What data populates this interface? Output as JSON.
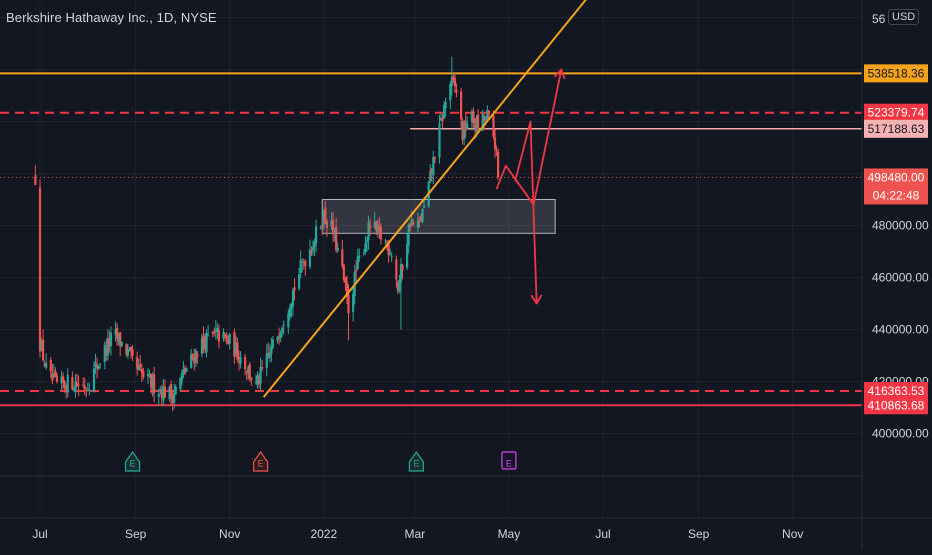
{
  "header": {
    "title": "Berkshire Hathaway Inc., 1D, NYSE",
    "currency": "USD"
  },
  "colors": {
    "background": "#131722",
    "grid": "#1e222d",
    "axis_text": "#d1d4dc",
    "up": "#26a69a",
    "down": "#ef5350",
    "resistance": "#f7a21b",
    "support": "#f23645",
    "arrow": "#f23645",
    "earnings": "#26a69a",
    "dividend": "#ef5350",
    "event_upcoming": "#e040fb"
  },
  "chart_data": {
    "type": "candlestick",
    "x_axis": {
      "labels": [
        "Jul",
        "Sep",
        "Nov",
        "2022",
        "Mar",
        "May",
        "Jul",
        "Sep",
        "Nov"
      ],
      "label_days": [
        0,
        62,
        123,
        184,
        243,
        304,
        365,
        427,
        488
      ]
    },
    "y_axis": {
      "range": [
        380000,
        565000
      ],
      "ticks": [
        400000,
        420000,
        440000,
        460000,
        480000
      ],
      "tick_labels": [
        "400000.00",
        "420000.00",
        "440000.00",
        "460000.00",
        "480000.00"
      ],
      "top_partial_label": "56"
    },
    "price_anchors": [
      [
        0,
        435000
      ],
      [
        5,
        422000
      ],
      [
        12,
        418000
      ],
      [
        20,
        420000
      ],
      [
        30,
        418000
      ],
      [
        42,
        432000
      ],
      [
        48,
        438000
      ],
      [
        55,
        433000
      ],
      [
        62,
        425000
      ],
      [
        70,
        420000
      ],
      [
        78,
        417000
      ],
      [
        86,
        415000
      ],
      [
        95,
        425000
      ],
      [
        105,
        435000
      ],
      [
        115,
        438000
      ],
      [
        123,
        435000
      ],
      [
        132,
        428000
      ],
      [
        140,
        418000
      ],
      [
        150,
        432000
      ],
      [
        160,
        448000
      ],
      [
        170,
        465000
      ],
      [
        178,
        475000
      ],
      [
        184,
        484000
      ],
      [
        190,
        478000
      ],
      [
        196,
        462000
      ],
      [
        200,
        448000
      ],
      [
        206,
        465000
      ],
      [
        214,
        480000
      ],
      [
        222,
        475000
      ],
      [
        228,
        470000
      ],
      [
        232,
        456000
      ],
      [
        236,
        468000
      ],
      [
        240,
        482000
      ],
      [
        244,
        478000
      ],
      [
        250,
        488000
      ],
      [
        256,
        508000
      ],
      [
        262,
        525000
      ],
      [
        266,
        535000
      ],
      [
        270,
        532000
      ],
      [
        274,
        515000
      ],
      [
        278,
        522000
      ],
      [
        284,
        518000
      ],
      [
        290,
        522000
      ],
      [
        295,
        512000
      ],
      [
        297,
        498480
      ]
    ],
    "key_levels": [
      {
        "name": "resistance-line",
        "value": 538518.36,
        "label": "538518.36",
        "style": "solid",
        "color": "#f7a21b"
      },
      {
        "name": "dashed-level-upper",
        "value": 523379.74,
        "label": "523379.74",
        "style": "dashed",
        "color": "#f23645"
      },
      {
        "name": "short-level",
        "value": 517188.63,
        "label": "517188.63",
        "style": "solid-short",
        "color": "#f7a8a8"
      },
      {
        "name": "last-price",
        "value": 498480.0,
        "label": "498480.00",
        "style": "dotted",
        "color": "#ef5350"
      },
      {
        "name": "dashed-level-lower",
        "value": 416363.53,
        "label": "416363.53",
        "style": "dashed",
        "color": "#f23645"
      },
      {
        "name": "support-line",
        "value": 410863.68,
        "label": "410863.68",
        "style": "solid",
        "color": "#f23645"
      }
    ],
    "countdown": "04:22:48",
    "trendline": {
      "start": [
        145,
        414000
      ],
      "end": [
        365,
        575000
      ]
    },
    "zone": {
      "day_from": 183,
      "day_to": 334,
      "price_from": 477000,
      "price_to": 490000
    },
    "scenario_arrows": [
      {
        "name": "bull-arrow-1",
        "points": [
          [
            296,
            494000
          ],
          [
            302,
            503000
          ],
          [
            320,
            488000
          ],
          [
            338,
            540000
          ]
        ]
      },
      {
        "name": "bear-arrow",
        "points": [
          [
            308,
            497000
          ],
          [
            318,
            520000
          ],
          [
            322,
            450000
          ]
        ]
      }
    ],
    "events": [
      {
        "name": "earnings-event-1",
        "label": "E",
        "day": 60,
        "kind": "earnings"
      },
      {
        "name": "dividend-event-1",
        "label": "E",
        "day": 143,
        "kind": "dividend"
      },
      {
        "name": "earnings-event-2",
        "label": "E",
        "day": 244,
        "kind": "earnings"
      },
      {
        "name": "upcoming-event",
        "label": "E",
        "day": 304,
        "kind": "upcoming"
      }
    ]
  }
}
